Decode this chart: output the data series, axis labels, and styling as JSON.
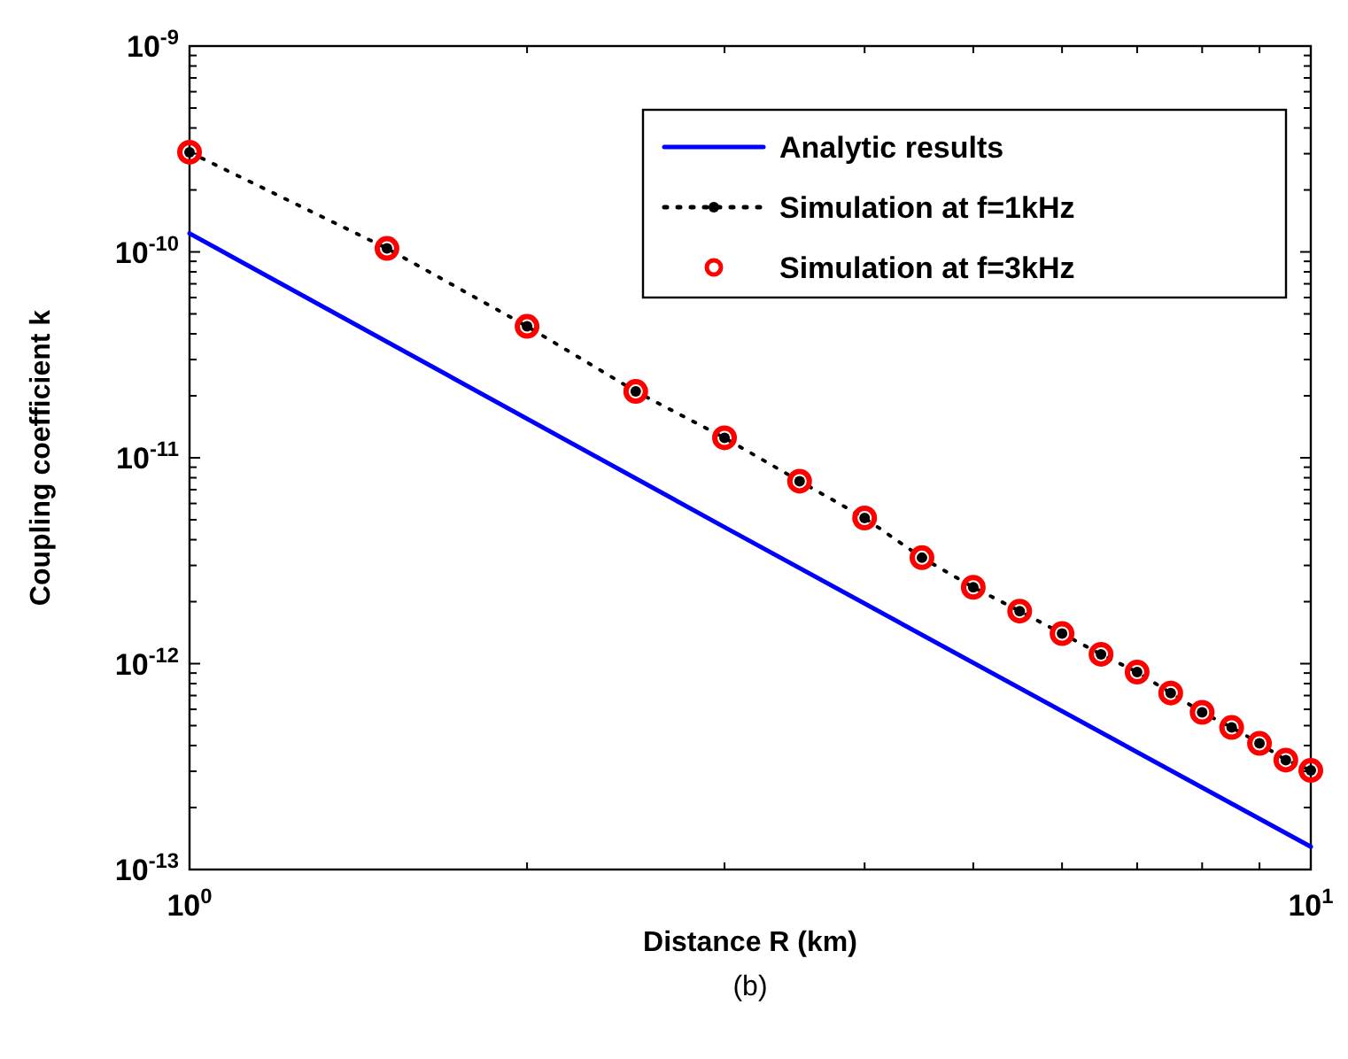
{
  "chart_data": {
    "type": "line",
    "xlabel": "Distance R (km)",
    "ylabel": "Coupling coefficient k",
    "annotations": [
      "(b)"
    ],
    "log": "xy",
    "xlim": [
      1,
      10
    ],
    "ylim": [
      1e-13,
      1e-09
    ],
    "xticks": [
      {
        "value": 1,
        "label": "10$^{0}$"
      },
      {
        "value": 2,
        "label": null
      },
      {
        "value": 3,
        "label": null
      },
      {
        "value": 4,
        "label": null
      },
      {
        "value": 5,
        "label": null
      },
      {
        "value": 6,
        "label": null
      },
      {
        "value": 7,
        "label": null
      },
      {
        "value": 8,
        "label": null
      },
      {
        "value": 9,
        "label": null
      },
      {
        "value": 10,
        "label": "10$^{1}$"
      }
    ],
    "yticks": [
      {
        "value": 1e-13,
        "label": "10$^{-13}$"
      },
      {
        "value": 1e-12,
        "label": "10$^{-12}$"
      },
      {
        "value": 1e-11,
        "label": "10$^{-11}$"
      },
      {
        "value": 1e-10,
        "label": "10$^{-10}$"
      },
      {
        "value": 1e-09,
        "label": "10$^{-9}$"
      }
    ],
    "grid": false,
    "legend": "top right",
    "series": [
      {
        "name": "Analytic results",
        "type": "line",
        "color": "#0000ff",
        "line_style": "solid",
        "marker": "none",
        "x": [
          1,
          3,
          10
        ],
        "values": [
          1.23e-10,
          4.6e-12,
          1.29e-13
        ]
      },
      {
        "name": "Simulation at f=1kHz",
        "type": "line",
        "color": "#000000",
        "line_style": "dotted",
        "marker": "circle",
        "x": [
          1,
          1.5,
          2,
          2.5,
          3,
          3.5,
          4,
          4.5,
          5,
          5.5,
          6,
          6.5,
          7,
          7.5,
          8,
          8.5,
          9,
          9.5,
          10
        ],
        "values": [
          3.05e-10,
          1.04e-10,
          4.35e-11,
          2.1e-11,
          1.25e-11,
          7.7e-12,
          5.1e-12,
          3.27e-12,
          2.35e-12,
          1.8e-12,
          1.4e-12,
          1.11e-12,
          9.1e-13,
          7.2e-13,
          5.8e-13,
          4.9e-13,
          4.1e-13,
          3.4e-13,
          3.03e-13
        ]
      },
      {
        "name": "Simulation at f=3kHz",
        "type": "scatter",
        "color": "#ff0000",
        "marker": "circle",
        "x": [
          1,
          1.5,
          2,
          2.5,
          3,
          3.5,
          4,
          4.5,
          5,
          5.5,
          6,
          6.5,
          7,
          7.5,
          8,
          8.5,
          9,
          9.5,
          10
        ],
        "values": [
          3.05e-10,
          1.04e-10,
          4.35e-11,
          2.1e-11,
          1.25e-11,
          7.7e-12,
          5.1e-12,
          3.27e-12,
          2.35e-12,
          1.8e-12,
          1.4e-12,
          1.11e-12,
          9.1e-13,
          7.2e-13,
          5.8e-13,
          4.9e-13,
          4.1e-13,
          3.4e-13,
          3.03e-13
        ]
      }
    ]
  }
}
